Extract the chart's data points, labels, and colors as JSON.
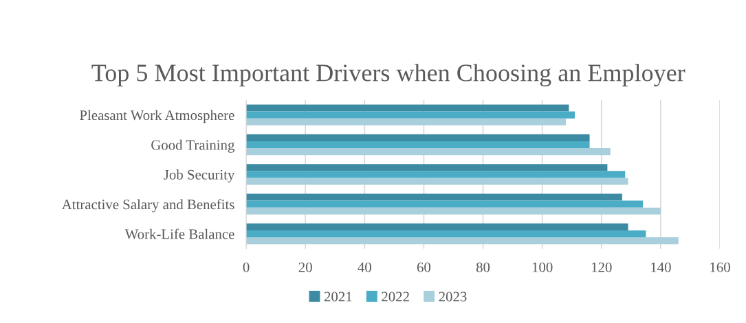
{
  "chart_data": {
    "type": "bar",
    "orientation": "horizontal",
    "title": "Top 5 Most Important Drivers when Choosing an Employer",
    "categories": [
      "Pleasant Work Atmosphere",
      "Good Training",
      "Job Security",
      "Attractive Salary and Benefits",
      "Work-Life Balance"
    ],
    "series": [
      {
        "name": "2021",
        "color": "#3d8ba3",
        "values": [
          109,
          116,
          122,
          127,
          129
        ]
      },
      {
        "name": "2022",
        "color": "#4bacc6",
        "values": [
          111,
          116,
          128,
          134,
          135
        ]
      },
      {
        "name": "2023",
        "color": "#a9cfdc",
        "values": [
          108,
          123,
          129,
          140,
          146
        ]
      }
    ],
    "xlim": [
      0,
      160
    ],
    "xticks": [
      0,
      20,
      40,
      60,
      80,
      100,
      120,
      140,
      160
    ],
    "grid": "x",
    "legend": "bottom"
  }
}
